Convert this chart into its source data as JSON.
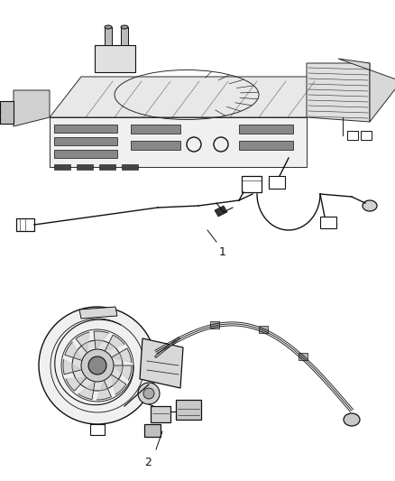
{
  "background_color": "#ffffff",
  "line_color": "#2a2a2a",
  "dark_color": "#111111",
  "mid_color": "#666666",
  "light_color": "#aaaaaa",
  "label_1": "1",
  "label_2": "2",
  "figsize": [
    4.38,
    5.33
  ],
  "dpi": 100
}
